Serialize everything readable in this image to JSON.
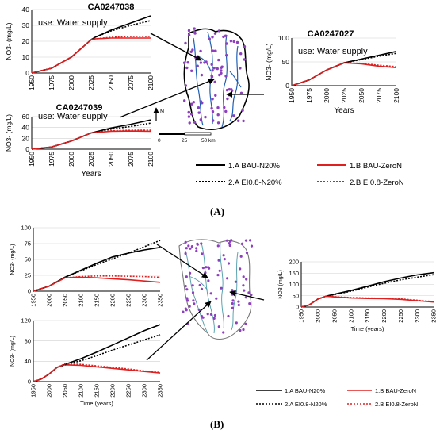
{
  "panel_labels": {
    "a": "(A)",
    "b": "(B)"
  },
  "map": {
    "scale_ticks": [
      "0",
      "25",
      "50 km"
    ],
    "north": "N"
  },
  "legend": {
    "bau_n20": "1.A BAU-N20%",
    "bau_zeron": "1.B BAU-ZeroN",
    "ei_n20": "2.A EI0.8-N20%",
    "ei_zeron": "2.B EI0.8-ZeroN"
  },
  "colors": {
    "n20": "#000000",
    "zeron": "#e02020",
    "map_line": "#1f5fb4",
    "well_dot": "#8e3fbf",
    "map_line_b": "#4a9aa8",
    "outline": "#000000"
  },
  "chart_data": [
    {
      "id": "a-CA0247038",
      "type": "line",
      "title": "CA0247038",
      "annotation": "use: Water supply",
      "ylabel": "NO3- (mg/L)",
      "xlabel": "",
      "xlim": [
        1950,
        2100
      ],
      "ylim": [
        0,
        40
      ],
      "xticks": [
        1950,
        1975,
        2000,
        2025,
        2050,
        2075,
        2100
      ],
      "yticks": [
        0,
        10,
        20,
        30,
        40
      ],
      "x": [
        1950,
        1975,
        2000,
        2025,
        2030,
        2050,
        2075,
        2100
      ],
      "series": [
        {
          "name": "1.A BAU-N20%",
          "color": "#000000",
          "dash": false,
          "values": [
            0,
            3,
            10,
            21,
            22.5,
            27,
            31.5,
            36
          ]
        },
        {
          "name": "1.B BAU-ZeroN",
          "color": "#e02020",
          "dash": false,
          "values": [
            0,
            3,
            10,
            21,
            21.5,
            22,
            22,
            22
          ]
        },
        {
          "name": "2.A EI0.8-N20%",
          "color": "#000000",
          "dash": true,
          "values": [
            0,
            3,
            10,
            21,
            22.5,
            26.5,
            30,
            33
          ]
        },
        {
          "name": "2.B EI0.8-ZeroN",
          "color": "#e02020",
          "dash": true,
          "values": [
            0,
            3,
            10,
            21,
            21.5,
            22.5,
            23,
            23
          ]
        }
      ]
    },
    {
      "id": "a-CA0247027",
      "type": "line",
      "title": "CA0247027",
      "annotation": "use: Water supply",
      "ylabel": "NO3- (mg/L)",
      "xlabel": "Years",
      "xlim": [
        1950,
        2100
      ],
      "ylim": [
        0,
        100
      ],
      "xticks": [
        1950,
        1975,
        2000,
        2025,
        2050,
        2075,
        2100
      ],
      "yticks": [
        0,
        50,
        100
      ],
      "x": [
        1950,
        1975,
        2000,
        2025,
        2050,
        2075,
        2100
      ],
      "series": [
        {
          "name": "1.A BAU-N20%",
          "color": "#000000",
          "dash": false,
          "values": [
            0,
            12,
            33,
            48,
            56,
            64,
            72
          ]
        },
        {
          "name": "1.B BAU-ZeroN",
          "color": "#e02020",
          "dash": false,
          "values": [
            0,
            12,
            33,
            48,
            46,
            41,
            38
          ]
        },
        {
          "name": "2.A EI0.8-N20%",
          "color": "#000000",
          "dash": true,
          "values": [
            0,
            12,
            33,
            48,
            55,
            62,
            68
          ]
        },
        {
          "name": "2.B EI0.8-ZeroN",
          "color": "#e02020",
          "dash": true,
          "values": [
            0,
            12,
            33,
            48,
            47,
            43,
            40
          ]
        }
      ]
    },
    {
      "id": "a-CA0247039",
      "type": "line",
      "title": "CA0247039",
      "annotation": "use: Water supply",
      "ylabel": "NO3- (mg/L)",
      "xlabel": "Years",
      "xlim": [
        1950,
        2100
      ],
      "ylim": [
        0,
        60
      ],
      "xticks": [
        1950,
        1975,
        2000,
        2025,
        2050,
        2075,
        2100
      ],
      "yticks": [
        0,
        20,
        40,
        60
      ],
      "x": [
        1950,
        1975,
        2000,
        2025,
        2050,
        2075,
        2100
      ],
      "series": [
        {
          "name": "1.A BAU-N20%",
          "color": "#000000",
          "dash": false,
          "values": [
            0,
            4,
            15,
            30,
            39,
            46,
            54
          ]
        },
        {
          "name": "1.B BAU-ZeroN",
          "color": "#e02020",
          "dash": false,
          "values": [
            0,
            4,
            15,
            30,
            33,
            33.5,
            33
          ]
        },
        {
          "name": "2.A EI0.8-N20%",
          "color": "#000000",
          "dash": true,
          "values": [
            0,
            4,
            15,
            30,
            37,
            42,
            48
          ]
        },
        {
          "name": "2.B EI0.8-ZeroN",
          "color": "#e02020",
          "dash": true,
          "values": [
            0,
            4,
            15,
            30,
            34,
            35,
            35
          ]
        }
      ]
    },
    {
      "id": "b-top-left",
      "type": "line",
      "title": "",
      "annotation": "",
      "ylabel": "NO3- (mg/L)",
      "xlabel": "",
      "xlim": [
        1950,
        2350
      ],
      "ylim": [
        0,
        100
      ],
      "xticks": [
        1950,
        2000,
        2050,
        2100,
        2150,
        2200,
        2250,
        2300,
        2350
      ],
      "yticks": [
        0,
        25,
        50,
        75,
        100
      ],
      "x": [
        1950,
        2000,
        2050,
        2100,
        2150,
        2200,
        2250,
        2300,
        2350
      ],
      "series": [
        {
          "name": "1.A BAU-N20%",
          "color": "#000000",
          "dash": false,
          "values": [
            0,
            8,
            22,
            33,
            44,
            54,
            60,
            65,
            69
          ]
        },
        {
          "name": "1.B BAU-ZeroN",
          "color": "#e02020",
          "dash": false,
          "values": [
            0,
            8,
            21,
            22,
            21,
            19.5,
            18,
            16,
            14
          ]
        },
        {
          "name": "2.A EI0.8-N20%",
          "color": "#000000",
          "dash": true,
          "values": [
            0,
            8,
            22,
            32,
            42,
            51,
            60,
            70,
            80
          ]
        },
        {
          "name": "2.B EI0.8-ZeroN",
          "color": "#e02020",
          "dash": true,
          "values": [
            0,
            8,
            21,
            23,
            24,
            24,
            23.5,
            23,
            22
          ]
        }
      ]
    },
    {
      "id": "b-right",
      "type": "line",
      "title": "",
      "annotation": "",
      "ylabel": "NO3 (mg/L)",
      "xlabel": "Time (years)",
      "xlim": [
        1950,
        2350
      ],
      "ylim": [
        0,
        200
      ],
      "xticks": [
        1950,
        2000,
        2050,
        2100,
        2150,
        2200,
        2250,
        2300,
        2350
      ],
      "yticks": [
        0,
        50,
        100,
        150,
        200
      ],
      "x": [
        1950,
        1975,
        2000,
        2025,
        2050,
        2100,
        2150,
        2200,
        2250,
        2300,
        2350
      ],
      "series": [
        {
          "name": "1.A BAU-N20%",
          "color": "#000000",
          "dash": false,
          "values": [
            0,
            10,
            35,
            48,
            57,
            73,
            92,
            112,
            128,
            142,
            152
          ]
        },
        {
          "name": "1.B BAU-ZeroN",
          "color": "#e02020",
          "dash": false,
          "values": [
            0,
            10,
            35,
            48,
            45,
            40,
            38,
            37,
            34,
            28,
            22
          ]
        },
        {
          "name": "2.A EI0.8-N20%",
          "color": "#000000",
          "dash": true,
          "values": [
            0,
            10,
            35,
            48,
            55,
            70,
            88,
            105,
            120,
            132,
            143
          ]
        },
        {
          "name": "2.B EI0.8-ZeroN",
          "color": "#e02020",
          "dash": true,
          "values": [
            0,
            10,
            35,
            48,
            46,
            42,
            40,
            39,
            36,
            30,
            24
          ]
        }
      ]
    },
    {
      "id": "b-bottom-left",
      "type": "line",
      "title": "",
      "annotation": "",
      "ylabel": "NO3- (mg/L)",
      "xlabel": "Time (years)",
      "xlim": [
        1950,
        2350
      ],
      "ylim": [
        0,
        120
      ],
      "xticks": [
        1950,
        2000,
        2050,
        2100,
        2150,
        2200,
        2250,
        2300,
        2350
      ],
      "yticks": [
        0,
        40,
        80,
        120
      ],
      "x": [
        1950,
        1975,
        2000,
        2025,
        2050,
        2100,
        2150,
        2200,
        2250,
        2300,
        2350
      ],
      "series": [
        {
          "name": "1.A BAU-N20%",
          "color": "#000000",
          "dash": false,
          "values": [
            0,
            5,
            15,
            28,
            34,
            45,
            58,
            72,
            86,
            100,
            112
          ]
        },
        {
          "name": "1.B BAU-ZeroN",
          "color": "#e02020",
          "dash": false,
          "values": [
            0,
            5,
            15,
            28,
            33,
            32,
            29,
            26,
            23,
            20,
            17
          ]
        },
        {
          "name": "2.A EI0.8-N20%",
          "color": "#000000",
          "dash": true,
          "values": [
            0,
            5,
            15,
            28,
            33,
            41,
            51,
            62,
            72,
            82,
            92
          ]
        },
        {
          "name": "2.B EI0.8-ZeroN",
          "color": "#e02020",
          "dash": true,
          "values": [
            0,
            5,
            15,
            28,
            35,
            34,
            31,
            28,
            25,
            21,
            18
          ]
        }
      ]
    }
  ]
}
